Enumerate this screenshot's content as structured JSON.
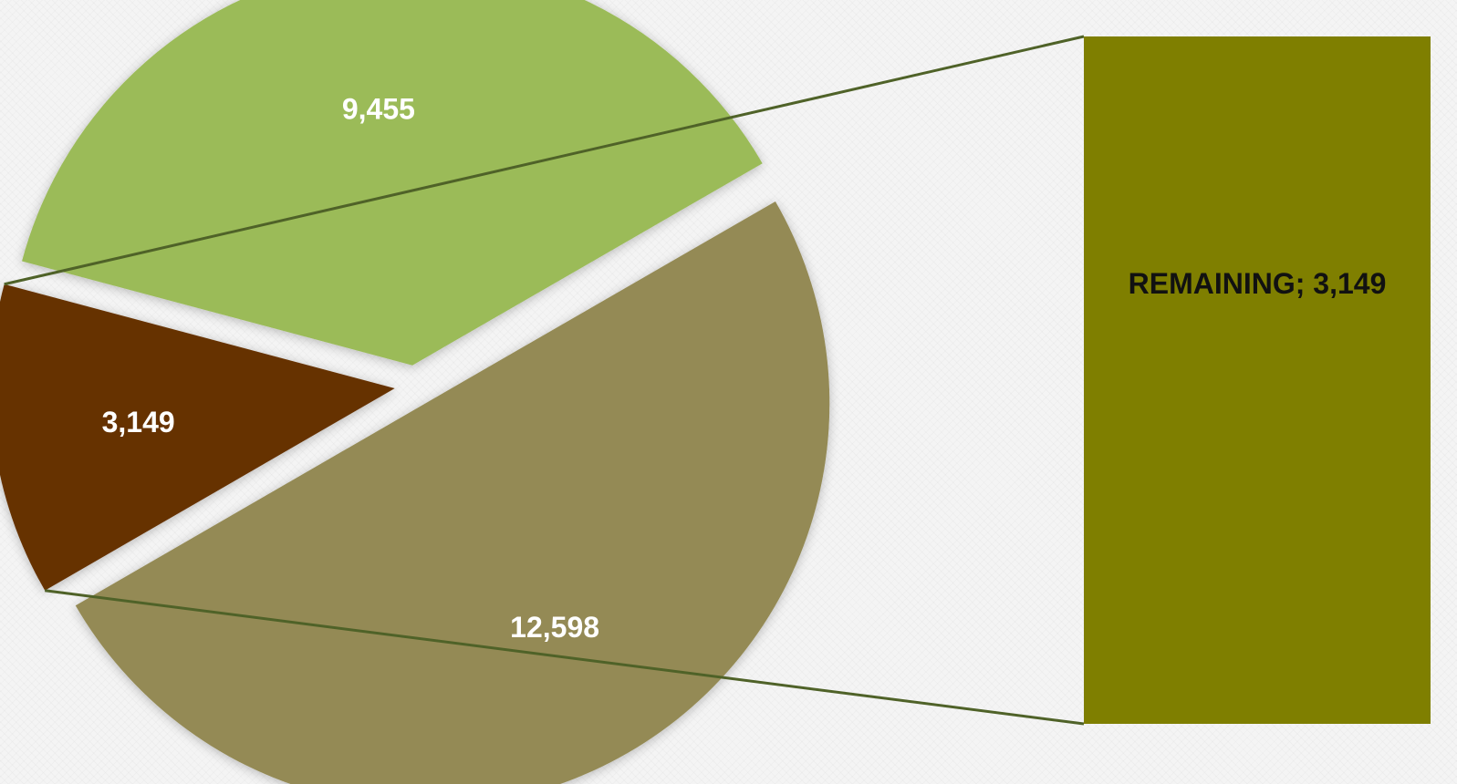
{
  "chart_data": {
    "type": "pie",
    "subtype": "bar-of-pie",
    "slices": [
      {
        "label": "",
        "value": 9455,
        "display": "9,455",
        "color": "#9bbb59"
      },
      {
        "label": "REMAINING",
        "value": 3149,
        "display": "3,149",
        "color": "#663300"
      },
      {
        "label": "",
        "value": 12598,
        "display": "12,598",
        "color": "#948a54"
      }
    ],
    "secondary_bar": {
      "label": "REMAINING; 3,149",
      "value": 3149,
      "color": "#7f7f00"
    },
    "connector_color": "#4f6228",
    "legend": "none",
    "title": ""
  }
}
